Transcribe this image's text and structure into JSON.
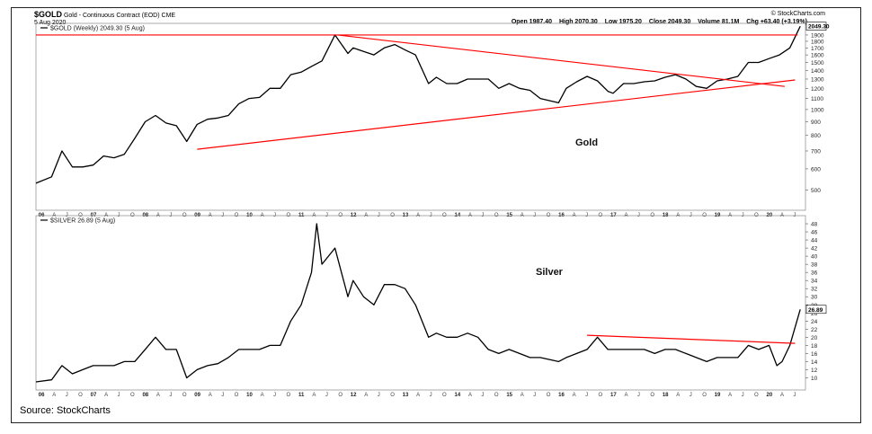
{
  "header": {
    "symbol": "$GOLD",
    "contract": "Gold - Continuous Contract (EOD) CME",
    "date": "5 Aug 2020",
    "brand": "© StockCharts.com",
    "stats": [
      "Open 1987.40",
      "High 2070.30",
      "Low 1975.20",
      "Close 2049.30",
      "Volume 81.1M",
      "Chg +63.40 (+3.19%)"
    ]
  },
  "source": "Source: StockCharts",
  "chart_data": [
    {
      "type": "line",
      "legend": "$GOLD (Weekly) 2049.30 (5 Aug)",
      "annotation": "Gold",
      "last_value_label": "2049.30",
      "series_color": "#000000",
      "trendline_color": "#ff0000",
      "y_scale": "log",
      "ylim": [
        420,
        2100
      ],
      "y_ticks": [
        500,
        600,
        700,
        800,
        900,
        1000,
        1100,
        1200,
        1300,
        1400,
        1500,
        1600,
        1700,
        1800,
        1900
      ],
      "xlim": [
        2005.9,
        2020.7
      ],
      "x_year_labels": [
        "06",
        "07",
        "08",
        "09",
        "10",
        "11",
        "12",
        "13",
        "14",
        "15",
        "16",
        "17",
        "18",
        "19",
        "20"
      ],
      "x": [
        2005.9,
        2006.2,
        2006.4,
        2006.6,
        2006.8,
        2007.0,
        2007.2,
        2007.4,
        2007.6,
        2007.8,
        2008.0,
        2008.2,
        2008.4,
        2008.6,
        2008.8,
        2009.0,
        2009.2,
        2009.4,
        2009.6,
        2009.8,
        2010.0,
        2010.2,
        2010.4,
        2010.6,
        2010.8,
        2011.0,
        2011.2,
        2011.4,
        2011.65,
        2011.9,
        2012.0,
        2012.2,
        2012.4,
        2012.6,
        2012.8,
        2013.0,
        2013.2,
        2013.45,
        2013.6,
        2013.8,
        2014.0,
        2014.2,
        2014.4,
        2014.6,
        2014.8,
        2015.0,
        2015.2,
        2015.4,
        2015.6,
        2015.95,
        2016.1,
        2016.3,
        2016.5,
        2016.7,
        2016.9,
        2017.0,
        2017.2,
        2017.4,
        2017.6,
        2017.8,
        2018.0,
        2018.2,
        2018.4,
        2018.6,
        2018.8,
        2019.0,
        2019.2,
        2019.4,
        2019.6,
        2019.8,
        2020.0,
        2020.2,
        2020.4,
        2020.6
      ],
      "values": [
        530,
        560,
        700,
        610,
        610,
        620,
        670,
        660,
        680,
        780,
        900,
        950,
        890,
        870,
        760,
        880,
        920,
        930,
        950,
        1050,
        1100,
        1110,
        1200,
        1200,
        1350,
        1380,
        1450,
        1520,
        1900,
        1620,
        1700,
        1650,
        1600,
        1700,
        1750,
        1670,
        1600,
        1250,
        1320,
        1250,
        1250,
        1300,
        1300,
        1300,
        1200,
        1250,
        1200,
        1180,
        1100,
        1060,
        1200,
        1270,
        1330,
        1280,
        1170,
        1150,
        1250,
        1250,
        1270,
        1280,
        1320,
        1350,
        1300,
        1220,
        1200,
        1280,
        1300,
        1330,
        1500,
        1500,
        1550,
        1600,
        1700,
        2049
      ]
    },
    {
      "type": "line",
      "legend": "$SILVER 26.89 (5 Aug)",
      "annotation": "Silver",
      "last_value_label": "26.89",
      "series_color": "#000000",
      "trendline_color": "#ff0000",
      "ylim": [
        7,
        50
      ],
      "y_ticks": [
        10,
        12,
        14,
        16,
        18,
        20,
        22,
        24,
        26,
        28,
        30,
        32,
        34,
        36,
        38,
        40,
        42,
        44,
        46,
        48
      ],
      "xlim": [
        2005.9,
        2020.7
      ],
      "x_year_labels": [
        "06",
        "07",
        "08",
        "09",
        "10",
        "11",
        "12",
        "13",
        "14",
        "15",
        "16",
        "17",
        "18",
        "19",
        "20"
      ],
      "x": [
        2005.9,
        2006.2,
        2006.4,
        2006.6,
        2006.8,
        2007.0,
        2007.2,
        2007.4,
        2007.6,
        2007.8,
        2008.0,
        2008.2,
        2008.4,
        2008.6,
        2008.8,
        2009.0,
        2009.2,
        2009.4,
        2009.6,
        2009.8,
        2010.0,
        2010.2,
        2010.4,
        2010.6,
        2010.8,
        2011.0,
        2011.2,
        2011.3,
        2011.4,
        2011.65,
        2011.9,
        2012.0,
        2012.2,
        2012.4,
        2012.6,
        2012.8,
        2013.0,
        2013.2,
        2013.45,
        2013.6,
        2013.8,
        2014.0,
        2014.2,
        2014.4,
        2014.6,
        2014.8,
        2015.0,
        2015.2,
        2015.4,
        2015.6,
        2015.95,
        2016.1,
        2016.3,
        2016.5,
        2016.7,
        2016.9,
        2017.0,
        2017.2,
        2017.4,
        2017.6,
        2017.8,
        2018.0,
        2018.2,
        2018.4,
        2018.6,
        2018.8,
        2019.0,
        2019.2,
        2019.4,
        2019.6,
        2019.8,
        2020.0,
        2020.15,
        2020.25,
        2020.4,
        2020.6
      ],
      "values": [
        9,
        9.5,
        13,
        11,
        12,
        13,
        13,
        13,
        14,
        14,
        17,
        20,
        17,
        17,
        10,
        12,
        13,
        13.5,
        15,
        17,
        17,
        17,
        18,
        18,
        24,
        28,
        36,
        48,
        38,
        42,
        30,
        34,
        30,
        28,
        33,
        33,
        32,
        28,
        20,
        21,
        20,
        20,
        21,
        20,
        17,
        16,
        17,
        16,
        15,
        15,
        14,
        15,
        16,
        17,
        20,
        17,
        17,
        17,
        17,
        17,
        16,
        17,
        17,
        16,
        15,
        14,
        15,
        15,
        15,
        18,
        17,
        18,
        13,
        14,
        18,
        26.89
      ]
    }
  ],
  "trendlines": {
    "gold": [
      {
        "from": [
          2005.9,
          1900
        ],
        "to": [
          2020.55,
          1900
        ]
      },
      {
        "from": [
          2011.7,
          1900
        ],
        "to": [
          2020.3,
          1220
        ]
      },
      {
        "from": [
          2009.0,
          710
        ],
        "to": [
          2020.5,
          1290
        ]
      }
    ],
    "silver": [
      {
        "from": [
          2016.5,
          20.5
        ],
        "to": [
          2020.5,
          18.5
        ]
      }
    ]
  }
}
